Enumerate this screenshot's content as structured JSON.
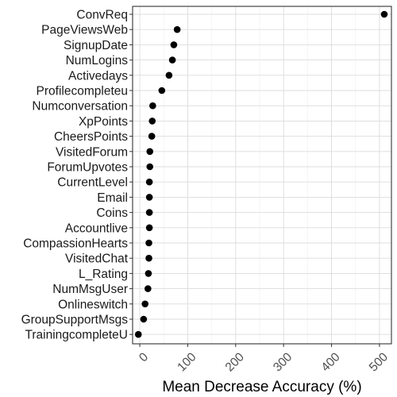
{
  "chart_data": {
    "type": "scatter",
    "orientation": "horizontal-dotplot",
    "title": "",
    "xlabel": "Mean Decrease Accuracy (%)",
    "ylabel": "",
    "xlim": [
      -15,
      525
    ],
    "xticks": [
      0,
      100,
      200,
      300,
      400,
      500
    ],
    "grid": true,
    "legend": "none",
    "point_color": "#000000",
    "points": [
      {
        "label": "ConvReq",
        "value": 510
      },
      {
        "label": "PageViewsWeb",
        "value": 78
      },
      {
        "label": "SignupDate",
        "value": 71
      },
      {
        "label": "NumLogins",
        "value": 68
      },
      {
        "label": "Activedays",
        "value": 61
      },
      {
        "label": "Profilecompleteu",
        "value": 46
      },
      {
        "label": "Numconversation",
        "value": 27
      },
      {
        "label": "XpPoints",
        "value": 26
      },
      {
        "label": "CheersPoints",
        "value": 25
      },
      {
        "label": "VisitedForum",
        "value": 21
      },
      {
        "label": "ForumUpvotes",
        "value": 21
      },
      {
        "label": "CurrentLevel",
        "value": 20
      },
      {
        "label": "Email",
        "value": 20
      },
      {
        "label": "Coins",
        "value": 20
      },
      {
        "label": "Accountlive",
        "value": 20
      },
      {
        "label": "CompassionHearts",
        "value": 19
      },
      {
        "label": "VisitedChat",
        "value": 19
      },
      {
        "label": "L_Rating",
        "value": 18
      },
      {
        "label": "NumMsgUser",
        "value": 17
      },
      {
        "label": "Onlineswitch",
        "value": 11
      },
      {
        "label": "GroupSupportMsgs",
        "value": 8
      },
      {
        "label": "TrainingcompleteU",
        "value": -3
      }
    ]
  }
}
